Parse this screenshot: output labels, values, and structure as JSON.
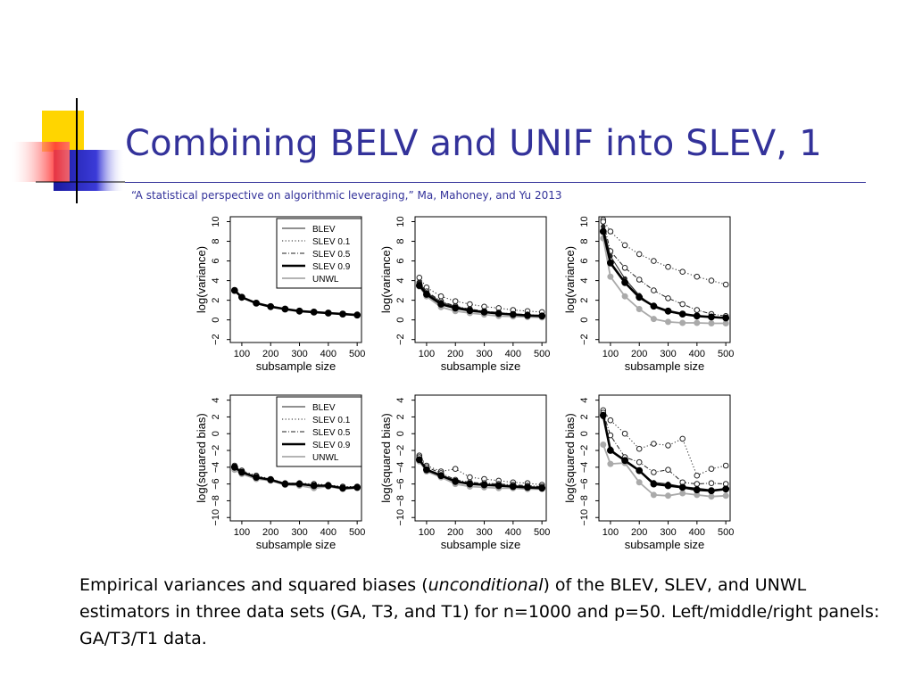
{
  "slide": {
    "title": "Combining BELV and UNIF into SLEV, 1",
    "subtitle": "“A statistical perspective on algorithmic leveraging,” Ma, Mahoney, and Yu 2013",
    "caption": {
      "part1": "Empirical variances and squared biases (",
      "emph": "unconditional",
      "part2": ") of the BLEV, SLEV, and UNWL estimators in three data sets (GA, T3, and T1) for n=1000 and p=50.  Left/middle/right panels: GA/T3/T1 data."
    }
  },
  "chart_data": [
    {
      "type": "line",
      "panel": "GA variance",
      "xlabel": "subsample size",
      "ylabel": "log(variance)",
      "x": [
        75,
        100,
        150,
        200,
        250,
        300,
        350,
        400,
        450,
        500
      ],
      "xticks": [
        100,
        200,
        300,
        400,
        500
      ],
      "yticks": [
        -2,
        0,
        2,
        4,
        6,
        8,
        10
      ],
      "ylim": [
        -2.3,
        10.5
      ],
      "legend": {
        "position": "top-right",
        "entries": [
          "BLEV",
          "SLEV 0.1",
          "SLEV 0.5",
          "SLEV 0.9",
          "UNWL"
        ]
      },
      "series": [
        {
          "name": "BLEV",
          "style": "thin",
          "values": [
            3.0,
            2.3,
            1.7,
            1.35,
            1.1,
            0.9,
            0.8,
            0.7,
            0.6,
            0.5
          ]
        },
        {
          "name": "SLEV 0.1",
          "style": "dotted",
          "values": [
            3.0,
            2.3,
            1.7,
            1.35,
            1.1,
            0.9,
            0.8,
            0.7,
            0.6,
            0.5
          ]
        },
        {
          "name": "SLEV 0.5",
          "style": "dashdot",
          "values": [
            3.0,
            2.3,
            1.7,
            1.35,
            1.1,
            0.9,
            0.8,
            0.7,
            0.6,
            0.5
          ]
        },
        {
          "name": "SLEV 0.9",
          "style": "thick",
          "values": [
            3.0,
            2.3,
            1.7,
            1.35,
            1.1,
            0.9,
            0.8,
            0.7,
            0.6,
            0.5
          ]
        },
        {
          "name": "UNWL",
          "style": "gray",
          "values": [
            3.0,
            2.3,
            1.7,
            1.35,
            1.1,
            0.9,
            0.8,
            0.7,
            0.6,
            0.5
          ]
        }
      ]
    },
    {
      "type": "line",
      "panel": "T3 variance",
      "xlabel": "subsample size",
      "ylabel": "log(variance)",
      "x": [
        75,
        100,
        150,
        200,
        250,
        300,
        350,
        400,
        450,
        500
      ],
      "xticks": [
        100,
        200,
        300,
        400,
        500
      ],
      "yticks": [
        -2,
        0,
        2,
        4,
        6,
        8,
        10
      ],
      "ylim": [
        -2.3,
        10.5
      ],
      "series": [
        {
          "name": "BLEV",
          "style": "thin",
          "values": [
            3.8,
            2.8,
            1.8,
            1.35,
            1.05,
            0.85,
            0.7,
            0.6,
            0.5,
            0.45
          ]
        },
        {
          "name": "SLEV 0.1",
          "style": "dotted",
          "values": [
            4.3,
            3.3,
            2.4,
            1.9,
            1.6,
            1.35,
            1.2,
            1.0,
            0.9,
            0.8
          ]
        },
        {
          "name": "SLEV 0.5",
          "style": "dashdot",
          "values": [
            3.8,
            2.9,
            1.9,
            1.4,
            1.1,
            0.9,
            0.75,
            0.6,
            0.55,
            0.45
          ]
        },
        {
          "name": "SLEV 0.9",
          "style": "thick",
          "values": [
            3.5,
            2.6,
            1.6,
            1.2,
            0.95,
            0.8,
            0.65,
            0.55,
            0.45,
            0.4
          ]
        },
        {
          "name": "UNWL",
          "style": "gray",
          "values": [
            3.4,
            2.4,
            1.3,
            0.9,
            0.7,
            0.55,
            0.4,
            0.35,
            0.3,
            0.25
          ]
        }
      ]
    },
    {
      "type": "line",
      "panel": "T1 variance",
      "xlabel": "subsample size",
      "ylabel": "log(variance)",
      "x": [
        75,
        100,
        150,
        200,
        250,
        300,
        350,
        400,
        450,
        500
      ],
      "xticks": [
        100,
        200,
        300,
        400,
        500
      ],
      "yticks": [
        -2,
        0,
        2,
        4,
        6,
        8,
        10
      ],
      "ylim": [
        -2.3,
        10.5
      ],
      "series": [
        {
          "name": "BLEV",
          "style": "thin",
          "values": [
            9.5,
            6.5,
            4.2,
            2.5,
            1.3,
            0.8,
            0.6,
            0.4,
            0.3,
            0.2
          ]
        },
        {
          "name": "SLEV 0.1",
          "style": "dotted",
          "values": [
            10.2,
            9.0,
            7.6,
            6.7,
            6.0,
            5.4,
            4.9,
            4.4,
            4.0,
            3.6
          ]
        },
        {
          "name": "SLEV 0.5",
          "style": "dashdot",
          "values": [
            10.0,
            7.0,
            5.3,
            4.1,
            3.0,
            2.2,
            1.6,
            1.0,
            0.6,
            0.4
          ]
        },
        {
          "name": "SLEV 0.9",
          "style": "thick",
          "values": [
            9.0,
            5.8,
            3.8,
            2.3,
            1.4,
            0.9,
            0.6,
            0.4,
            0.3,
            0.2
          ]
        },
        {
          "name": "UNWL",
          "style": "gray",
          "values": [
            8.3,
            4.4,
            2.4,
            1.1,
            0.1,
            -0.2,
            -0.3,
            -0.3,
            -0.35,
            -0.35
          ]
        }
      ]
    },
    {
      "type": "line",
      "panel": "GA bias",
      "xlabel": "subsample size",
      "ylabel": "log(squared bias)",
      "x": [
        75,
        100,
        150,
        200,
        250,
        300,
        350,
        400,
        450,
        500
      ],
      "xticks": [
        100,
        200,
        300,
        400,
        500
      ],
      "yticks": [
        -10,
        -8,
        -6,
        -4,
        -2,
        0,
        2,
        4
      ],
      "ylim": [
        -10.4,
        4.6
      ],
      "legend": {
        "position": "top-right",
        "entries": [
          "BLEV",
          "SLEV 0.1",
          "SLEV 0.5",
          "SLEV 0.9",
          "UNWL"
        ]
      },
      "series": [
        {
          "name": "BLEV",
          "style": "thin",
          "values": [
            -4.0,
            -4.6,
            -5.2,
            -5.5,
            -6.0,
            -6.0,
            -6.3,
            -6.2,
            -6.5,
            -6.4
          ]
        },
        {
          "name": "SLEV 0.1",
          "style": "dotted",
          "values": [
            -3.8,
            -4.4,
            -5.0,
            -5.4,
            -5.9,
            -5.9,
            -6.0,
            -6.1,
            -6.3,
            -6.3
          ]
        },
        {
          "name": "SLEV 0.5",
          "style": "dashdot",
          "values": [
            -4.0,
            -4.6,
            -5.2,
            -5.5,
            -6.0,
            -6.0,
            -6.2,
            -6.2,
            -6.5,
            -6.4
          ]
        },
        {
          "name": "SLEV 0.9",
          "style": "thick",
          "values": [
            -4.0,
            -4.6,
            -5.2,
            -5.5,
            -6.0,
            -6.0,
            -6.2,
            -6.2,
            -6.5,
            -6.4
          ]
        },
        {
          "name": "UNWL",
          "style": "gray",
          "values": [
            -4.3,
            -4.8,
            -5.4,
            -5.6,
            -6.1,
            -6.2,
            -6.5,
            -6.3,
            -6.6,
            -6.5
          ]
        }
      ]
    },
    {
      "type": "line",
      "panel": "T3 bias",
      "xlabel": "subsample size",
      "ylabel": "log(squared bias)",
      "x": [
        75,
        100,
        150,
        200,
        250,
        300,
        350,
        400,
        450,
        500
      ],
      "xticks": [
        100,
        200,
        300,
        400,
        500
      ],
      "yticks": [
        -10,
        -8,
        -6,
        -4,
        -2,
        0,
        2,
        4
      ],
      "ylim": [
        -10.4,
        4.6
      ],
      "series": [
        {
          "name": "BLEV",
          "style": "thin",
          "values": [
            -3.0,
            -4.2,
            -4.9,
            -5.6,
            -5.9,
            -6.0,
            -6.1,
            -6.2,
            -6.3,
            -6.4
          ]
        },
        {
          "name": "SLEV 0.1",
          "style": "dotted",
          "values": [
            -2.6,
            -3.8,
            -4.5,
            -4.2,
            -5.2,
            -5.4,
            -5.6,
            -5.8,
            -5.9,
            -6.1
          ]
        },
        {
          "name": "SLEV 0.5",
          "style": "dashdot",
          "values": [
            -2.8,
            -4.0,
            -4.7,
            -5.5,
            -5.8,
            -5.9,
            -6.0,
            -6.1,
            -6.2,
            -6.3
          ]
        },
        {
          "name": "SLEV 0.9",
          "style": "thick",
          "values": [
            -3.1,
            -4.3,
            -5.0,
            -5.7,
            -6.0,
            -6.1,
            -6.2,
            -6.3,
            -6.4,
            -6.5
          ]
        },
        {
          "name": "UNWL",
          "style": "gray",
          "values": [
            -3.3,
            -4.5,
            -5.2,
            -6.0,
            -6.3,
            -6.4,
            -6.5,
            -6.5,
            -6.6,
            -6.6
          ]
        }
      ]
    },
    {
      "type": "line",
      "panel": "T1 bias",
      "xlabel": "subsample size",
      "ylabel": "log(squared bias)",
      "x": [
        75,
        100,
        150,
        200,
        250,
        300,
        350,
        400,
        450,
        500
      ],
      "xticks": [
        100,
        200,
        300,
        400,
        500
      ],
      "yticks": [
        -10,
        -8,
        -6,
        -4,
        -2,
        0,
        2,
        4
      ],
      "ylim": [
        -10.4,
        4.6
      ],
      "series": [
        {
          "name": "BLEV",
          "style": "thin",
          "values": [
            2.0,
            -1.8,
            -3.3,
            -4.5,
            -5.8,
            -6.0,
            -6.3,
            -6.5,
            -6.7,
            -6.6
          ]
        },
        {
          "name": "SLEV 0.1",
          "style": "dotted",
          "values": [
            2.8,
            1.6,
            0.0,
            -1.8,
            -1.2,
            -1.4,
            -0.6,
            -5.0,
            -4.2,
            -3.8
          ]
        },
        {
          "name": "SLEV 0.5",
          "style": "dashdot",
          "values": [
            2.5,
            -0.2,
            -2.8,
            -3.4,
            -4.6,
            -4.3,
            -5.8,
            -6.0,
            -5.9,
            -6.0
          ]
        },
        {
          "name": "SLEV 0.9",
          "style": "thick",
          "values": [
            2.2,
            -2.0,
            -3.2,
            -4.4,
            -6.0,
            -6.2,
            -6.4,
            -6.7,
            -6.8,
            -6.6
          ]
        },
        {
          "name": "UNWL",
          "style": "gray",
          "values": [
            -1.3,
            -3.6,
            -3.5,
            -5.8,
            -7.3,
            -7.4,
            -7.1,
            -7.3,
            -7.5,
            -7.4
          ]
        }
      ]
    }
  ]
}
